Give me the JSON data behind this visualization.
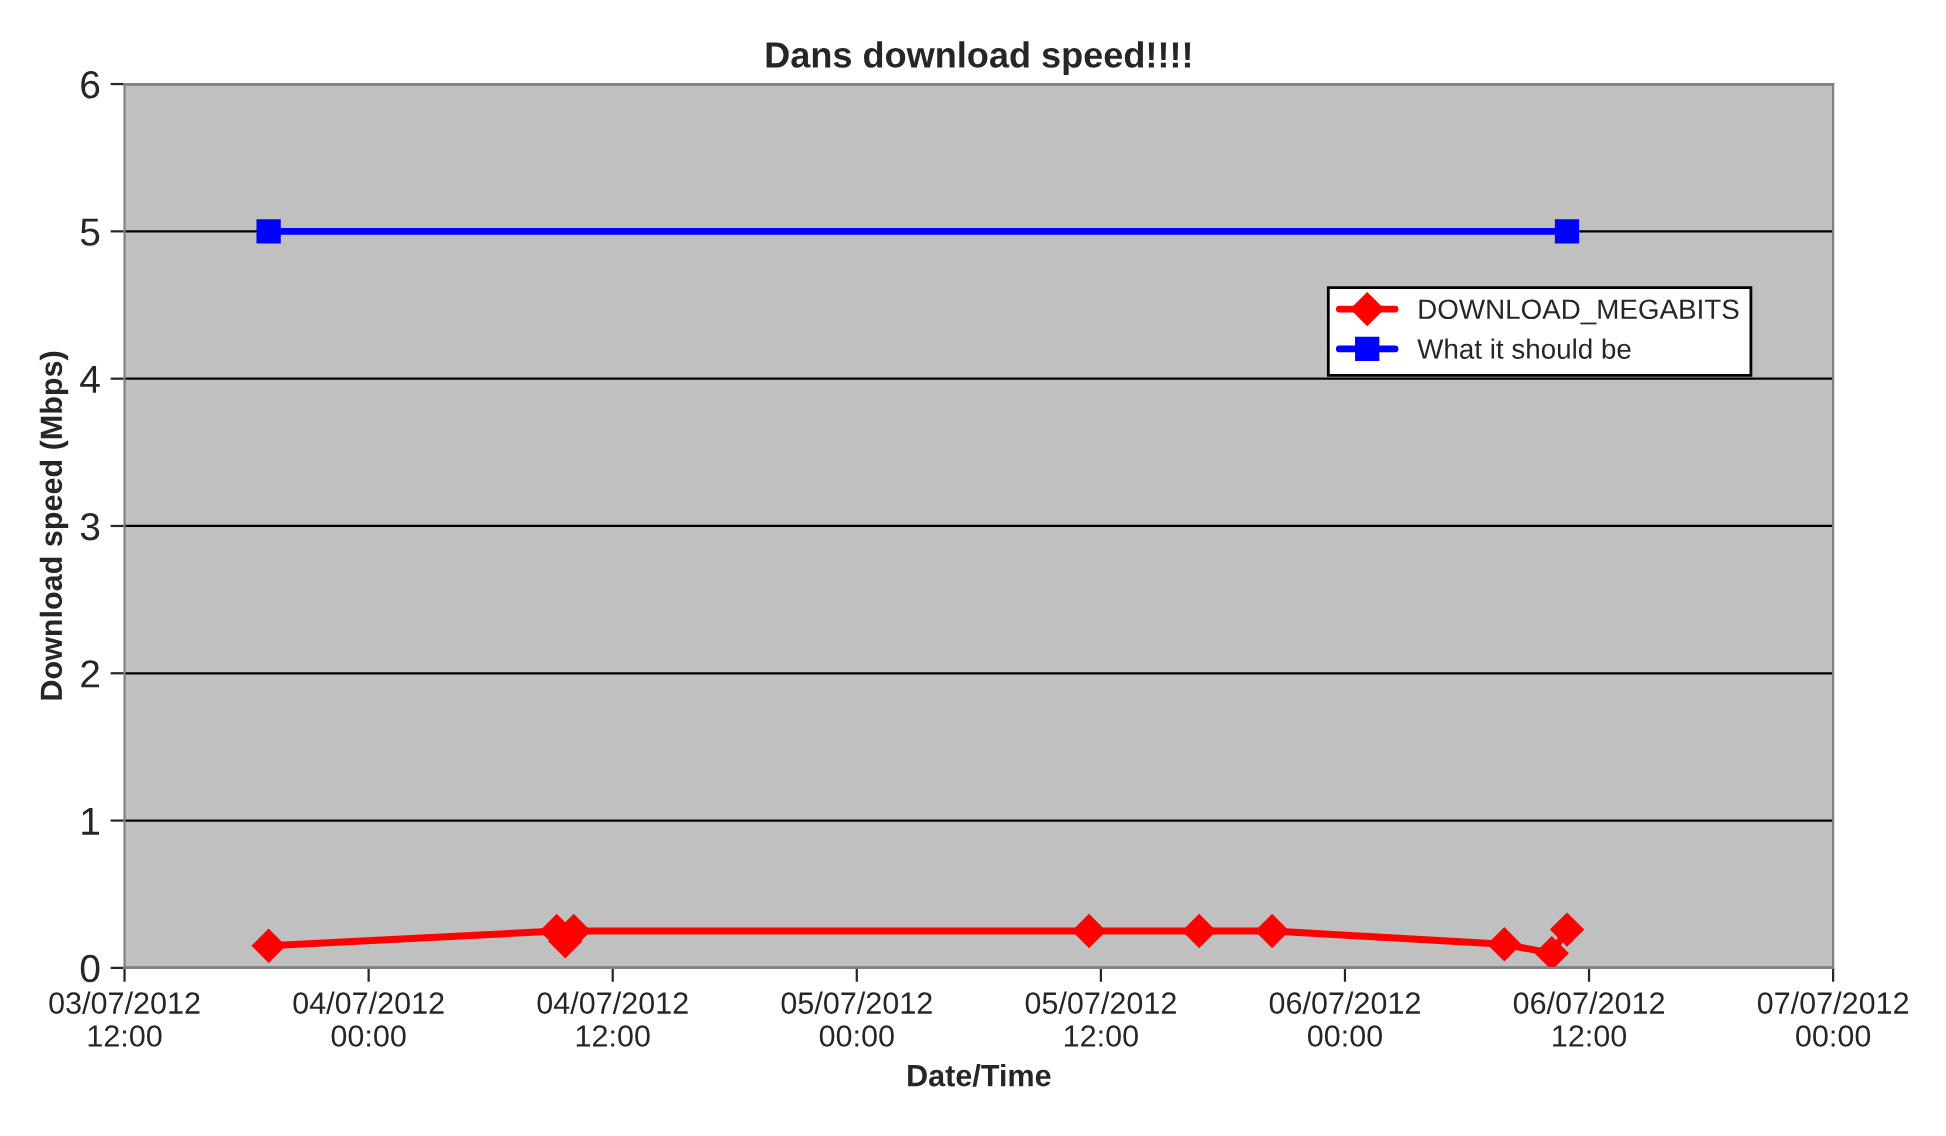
{
  "chart_data": {
    "type": "line",
    "title": "Dans download speed!!!!",
    "xlabel": "Date/Time",
    "ylabel": "Download speed (Mbps)",
    "series": [
      {
        "name": "DOWNLOAD_MEGABITS",
        "color": "#ff0000",
        "marker": "diamond",
        "x": [
          "2012-07-03T19:05",
          "2012-07-04T09:15",
          "2012-07-04T09:40",
          "2012-07-04T10:05",
          "2012-07-05T11:25",
          "2012-07-05T16:50",
          "2012-07-05T20:25",
          "2012-07-06T07:50",
          "2012-07-06T10:10",
          "2012-07-06T10:55"
        ],
        "values": [
          0.15,
          0.25,
          0.18,
          0.25,
          0.25,
          0.25,
          0.25,
          0.16,
          0.1,
          0.26
        ]
      },
      {
        "name": "What it should be",
        "color": "#0000ff",
        "marker": "square",
        "x": [
          "2012-07-03T19:05",
          "2012-07-06T10:55"
        ],
        "values": [
          5,
          5
        ]
      }
    ],
    "xlim": [
      "2012-07-03T12:00",
      "2012-07-07T00:00"
    ],
    "xticks": [
      {
        "value": "2012-07-03T12:00",
        "label": "03/07/2012\n12:00"
      },
      {
        "value": "2012-07-04T00:00",
        "label": "04/07/2012\n00:00"
      },
      {
        "value": "2012-07-04T12:00",
        "label": "04/07/2012\n12:00"
      },
      {
        "value": "2012-07-05T00:00",
        "label": "05/07/2012\n00:00"
      },
      {
        "value": "2012-07-05T12:00",
        "label": "05/07/2012\n12:00"
      },
      {
        "value": "2012-07-06T00:00",
        "label": "06/07/2012\n00:00"
      },
      {
        "value": "2012-07-06T12:00",
        "label": "06/07/2012\n12:00"
      },
      {
        "value": "2012-07-07T00:00",
        "label": "07/07/2012\n00:00"
      }
    ],
    "ylim": [
      0,
      6
    ],
    "yticks": [
      0,
      1,
      2,
      3,
      4,
      5,
      6
    ],
    "grid": "y",
    "legend": "right",
    "line_style": "solid"
  }
}
